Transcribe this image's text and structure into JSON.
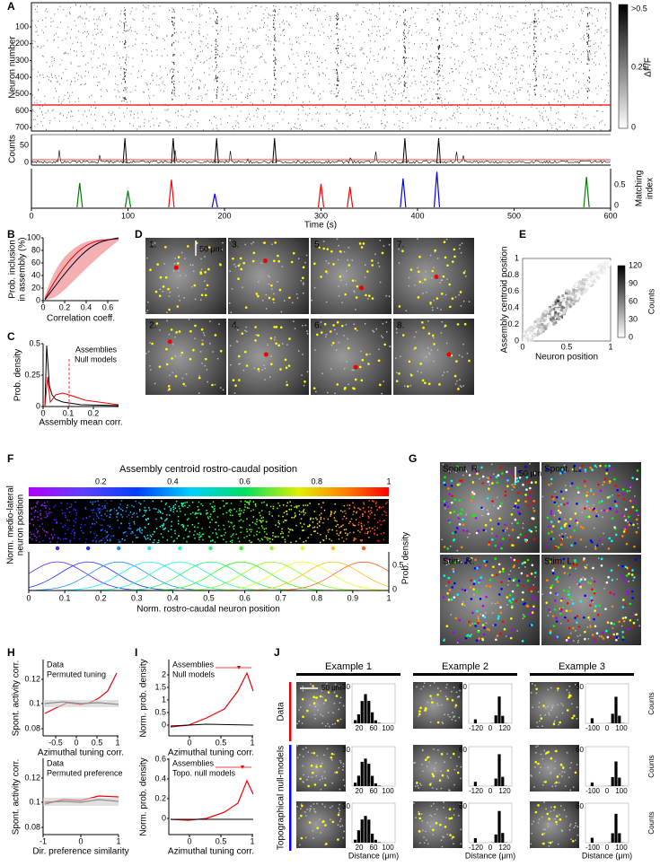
{
  "panel_labels": [
    "A",
    "B",
    "C",
    "D",
    "E",
    "F",
    "G",
    "H",
    "I",
    "J"
  ],
  "A": {
    "y_label": "Neuron number",
    "y_ticks": [
      "100",
      "200",
      "300",
      "400",
      "500",
      "600",
      "700"
    ],
    "counts_label": "Counts",
    "counts_ticks": [
      "50",
      "0"
    ],
    "mi_label": [
      "Matching",
      "index"
    ],
    "mi_ticks": [
      "0.5",
      "0"
    ],
    "x_ticks": [
      "0",
      "100",
      "200",
      "300",
      "400",
      "500",
      "600"
    ],
    "x_label": "Time (s)",
    "cbar_label": "ΔF/F",
    "cbar_ticks": [
      ">0.5",
      "0.25",
      "0"
    ]
  },
  "B": {
    "y_label": [
      "Prob. inclusion",
      "in assembly (%)"
    ],
    "y_ticks": [
      "0",
      "20",
      "40",
      "60",
      "80",
      "100"
    ],
    "x_ticks": [
      "0",
      "0.2",
      "0.4",
      "0.6"
    ],
    "x_label": "Correlation coeff."
  },
  "C": {
    "y_label": "Prob. density",
    "y_ticks": [
      "0",
      "0.25",
      "0.5"
    ],
    "x_ticks": [
      "0",
      "0.1",
      "0.2"
    ],
    "x_label": "Assembly mean corr.",
    "legend": [
      "Assemblies",
      "Null models"
    ]
  },
  "D": {
    "image_labels": [
      "1.",
      "3.",
      "5.",
      "7.",
      "2.",
      "4.",
      "6.",
      "8."
    ],
    "scale": "50 μm"
  },
  "E": {
    "y_label": "Assembly centroid position",
    "y_ticks": [
      "0",
      "0.2",
      "0.4",
      "0.6",
      "0.8",
      "1"
    ],
    "x_ticks": [
      "0",
      "0.5",
      "1"
    ],
    "x_label": "Neuron position",
    "cbar_ticks": [
      "0",
      "30",
      "60",
      "90",
      "120"
    ],
    "cbar_label": "Counts"
  },
  "F": {
    "title": "Assembly centroid rostro-caudal position",
    "cbar_ticks": [
      "0.2",
      "0.4",
      "0.6",
      "0.8",
      "1"
    ],
    "y_label": [
      "Norm. medio-lateral",
      "neuron position"
    ],
    "right_label": "Prob. density",
    "right_ticks": [
      "0.5",
      "0"
    ],
    "x_ticks": [
      "0",
      "0.1",
      "0.2",
      "0.3",
      "0.4",
      "0.5",
      "0.6",
      "0.7",
      "0.8",
      "0.9",
      "1"
    ],
    "x_label": "Norm. rostro-caudal neuron position"
  },
  "G": {
    "image_labels": [
      "Spont. R.",
      "Spont. L.",
      "Stim. R.",
      "Stim. L."
    ],
    "scale": "50 μm"
  },
  "H": {
    "y_label": "Spont. activity corr.",
    "top": {
      "y_ticks": [
        "0.08",
        "0.1",
        "0.12"
      ],
      "x_ticks": [
        "-0.5",
        "0",
        "0.5",
        "1"
      ],
      "x_label": "Azimuthal tuning corr.",
      "legend": [
        "Data",
        "Permuted tuning"
      ]
    },
    "bottom": {
      "y_ticks": [
        "0.08",
        "0.1",
        "0.12"
      ],
      "x_ticks": [
        "-1",
        "0",
        "1"
      ],
      "x_label": "Dir. preference similarity",
      "legend": [
        "Data",
        "Permuted preference"
      ]
    }
  },
  "I": {
    "y_label": "Norm. prob. density",
    "top": {
      "y_ticks": [
        "0",
        "0.5",
        "1",
        "1.5",
        "2"
      ],
      "x_ticks": [
        "0",
        "0.5",
        "1"
      ],
      "x_label": "Azimuthal tuning corr.",
      "legend": [
        "Assemblies",
        "Null models"
      ]
    },
    "bottom": {
      "y_ticks": [
        "0",
        "0.2",
        "0.4",
        "0.6"
      ],
      "x_ticks": [
        "0",
        "0.5",
        "1"
      ],
      "x_label": "Azimuthal tuning corr.",
      "legend": [
        "Assemblies",
        "Topo. null models"
      ]
    }
  },
  "J": {
    "examples": [
      {
        "title": "Example 1",
        "y_tick": "30",
        "x_ticks": [
          "20",
          "60",
          "100"
        ]
      },
      {
        "title": "Example 2",
        "y_tick": "60",
        "x_ticks": [
          "-120",
          "0",
          "120"
        ]
      },
      {
        "title": "Example 3",
        "y_tick": "60",
        "x_ticks": [
          "-100",
          "0",
          "100"
        ]
      }
    ],
    "row_labels": [
      "Data",
      "Topographical null-models"
    ],
    "scale": "50 μm",
    "counts_label": "Counts",
    "x_label": "Distance (μm)"
  }
}
